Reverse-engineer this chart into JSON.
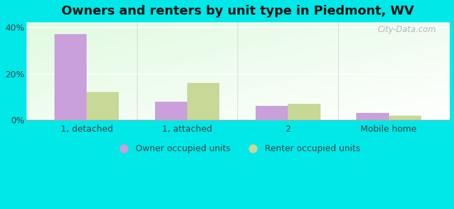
{
  "title": "Owners and renters by unit type in Piedmont, WV",
  "categories": [
    "1, detached",
    "1, attached",
    "2",
    "Mobile home"
  ],
  "owner_values": [
    37,
    8,
    6,
    3
  ],
  "renter_values": [
    12,
    16,
    7,
    2
  ],
  "owner_color": "#c9a0dc",
  "renter_color": "#c8d896",
  "ylim": [
    0,
    42
  ],
  "yticks": [
    0,
    20,
    40
  ],
  "ytick_labels": [
    "0%",
    "20%",
    "40%"
  ],
  "outer_background": "#00e8e8",
  "bar_width": 0.32,
  "legend_owner": "Owner occupied units",
  "legend_renter": "Renter occupied units",
  "watermark": "City-Data.com",
  "title_fontsize": 13,
  "axis_fontsize": 9,
  "legend_fontsize": 9
}
